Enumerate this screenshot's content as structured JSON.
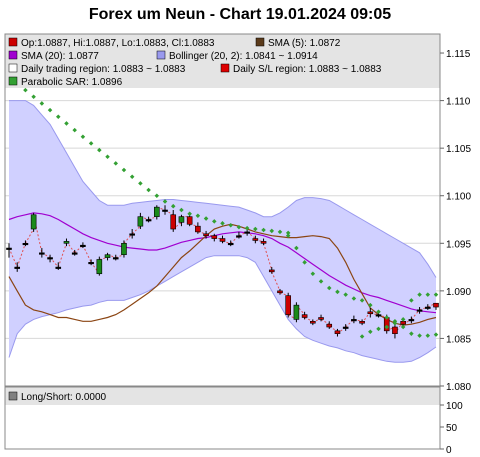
{
  "title": "Forex um Neun - Chart 19.01.2024 09:05",
  "legend": {
    "ohlc": "Op:1.0887, Hi:1.0887, Lo:1.0883, Cl:1.0883",
    "sma5": "SMA (5): 1.0872",
    "sma20": "SMA (20): 1.0877",
    "bollinger": "Bollinger (20, 2): 1.0841 ~ 1.0914",
    "daily_region": "Daily trading region: 1.0883 ~ 1.0883",
    "daily_sl": "Daily S/L region: 1.0883 ~ 1.0883",
    "sar": "Parabolic SAR: 1.0896"
  },
  "lower_legend": {
    "longshort": "Long/Short: 0.0000"
  },
  "colors": {
    "up": "#1a8a1a",
    "down": "#cc0000",
    "sma5": "#8b4513",
    "sma20": "#a000d0",
    "band_fill": "#d0d0ff",
    "band_line": "#9999ee",
    "sar": "#33a033",
    "dashes": "#e05050"
  },
  "chart_data": {
    "type": "candlestick",
    "ylim": [
      1.08,
      1.117
    ],
    "yticks": [
      "1.115",
      "1.110",
      "1.105",
      "1.100",
      "1.095",
      "1.090",
      "1.085",
      "1.080"
    ],
    "candles": [
      [
        1.0945,
        1.095,
        1.0935,
        1.0945
      ],
      [
        1.0925,
        1.093,
        1.092,
        1.0925
      ],
      [
        1.095,
        1.0953,
        1.0947,
        1.095
      ],
      [
        1.0965,
        1.0982,
        1.0962,
        1.098
      ],
      [
        1.094,
        1.0945,
        1.0935,
        1.094
      ],
      [
        1.0935,
        1.0938,
        1.093,
        1.0935
      ],
      [
        1.0925,
        1.093,
        1.0922,
        1.0925
      ],
      [
        1.095,
        1.0955,
        1.0947,
        1.0952
      ],
      [
        1.094,
        1.0943,
        1.0937,
        1.094
      ],
      [
        1.0948,
        1.0951,
        1.0945,
        1.0948
      ],
      [
        1.093,
        1.0933,
        1.0927,
        1.093
      ],
      [
        1.0918,
        1.0936,
        1.0916,
        1.0933
      ],
      [
        1.0935,
        1.094,
        1.0932,
        1.0938
      ],
      [
        1.0935,
        1.0938,
        1.0932,
        1.0935
      ],
      [
        1.0938,
        1.0953,
        1.0935,
        1.095
      ],
      [
        1.096,
        1.0965,
        1.0955,
        1.096
      ],
      [
        1.0968,
        1.0982,
        1.0965,
        1.0978
      ],
      [
        1.0975,
        1.0978,
        1.0972,
        1.0975
      ],
      [
        1.0978,
        1.099,
        1.0975,
        1.0988
      ],
      [
        1.0985,
        1.099,
        1.098,
        1.0985
      ],
      [
        1.098,
        1.0985,
        1.0962,
        1.0965
      ],
      [
        1.0972,
        1.098,
        1.0968,
        1.0978
      ],
      [
        1.0978,
        1.0982,
        1.0968,
        1.097
      ],
      [
        1.0968,
        1.0972,
        1.096,
        1.0962
      ],
      [
        1.096,
        1.0963,
        1.0955,
        1.0958
      ],
      [
        1.0958,
        1.096,
        1.0952,
        1.0955
      ],
      [
        1.0955,
        1.0958,
        1.095,
        1.0952
      ],
      [
        1.095,
        1.0953,
        1.0947,
        1.095
      ],
      [
        1.0958,
        1.0962,
        1.0955,
        1.0958
      ],
      [
        1.0962,
        1.0965,
        1.0958,
        1.0962
      ],
      [
        1.0955,
        1.0958,
        1.095,
        1.0953
      ],
      [
        1.0952,
        1.0955,
        1.0948,
        1.095
      ],
      [
        1.0922,
        1.0925,
        1.0918,
        1.092
      ],
      [
        1.09,
        1.0902,
        1.0896,
        1.0898
      ],
      [
        1.0895,
        1.0898,
        1.0872,
        1.0875
      ],
      [
        1.087,
        1.0888,
        1.0867,
        1.0885
      ],
      [
        1.0875,
        1.0878,
        1.087,
        1.0872
      ],
      [
        1.0868,
        1.087,
        1.0864,
        1.0866
      ],
      [
        1.0872,
        1.0875,
        1.0868,
        1.087
      ],
      [
        1.0865,
        1.0868,
        1.086,
        1.0862
      ],
      [
        1.0858,
        1.086,
        1.0852,
        1.0855
      ],
      [
        1.0862,
        1.0865,
        1.0858,
        1.0862
      ],
      [
        1.087,
        1.0874,
        1.0866,
        1.087
      ],
      [
        1.0868,
        1.087,
        1.0864,
        1.0866
      ],
      [
        1.0878,
        1.0882,
        1.0872,
        1.0876
      ],
      [
        1.0875,
        1.0878,
        1.0872,
        1.0875
      ],
      [
        1.0872,
        1.0875,
        1.0855,
        1.0858
      ],
      [
        1.0862,
        1.0865,
        1.085,
        1.0855
      ],
      [
        1.0868,
        1.0872,
        1.0862,
        1.0865
      ],
      [
        1.087,
        1.0873,
        1.0866,
        1.087
      ],
      [
        1.088,
        1.0883,
        1.0876,
        1.088
      ],
      [
        1.0883,
        1.0886,
        1.088,
        1.0883
      ],
      [
        1.0887,
        1.0887,
        1.088,
        1.0883
      ]
    ],
    "sma5": [
      1.0915,
      1.09,
      1.0885,
      1.088,
      1.0878,
      1.0875,
      1.0872,
      1.0872,
      1.087,
      1.0868,
      1.0868,
      1.087,
      1.0872,
      1.0875,
      1.088,
      1.0886,
      1.0892,
      1.0898,
      1.0905,
      1.0915,
      1.0925,
      1.0935,
      1.0942,
      1.095,
      1.0958,
      1.0965,
      1.0968,
      1.097,
      1.0968,
      1.0965,
      1.0962,
      1.096,
      1.0958,
      1.0957,
      1.0956,
      1.0956,
      1.0957,
      1.0958,
      1.0957,
      1.0955,
      1.0945,
      1.093,
      1.0912,
      1.0897,
      1.0882,
      1.0875,
      1.087,
      1.0866,
      1.0864,
      1.0865,
      1.0867,
      1.087,
      1.0872
    ],
    "sma20": [
      1.0975,
      1.0978,
      1.098,
      1.0982,
      1.0981,
      1.0979,
      1.0975,
      1.097,
      1.0965,
      1.096,
      1.0956,
      1.0953,
      1.095,
      1.0948,
      1.0946,
      1.0945,
      1.0944,
      1.0943,
      1.0943,
      1.0945,
      1.0948,
      1.0951,
      1.0953,
      1.0955,
      1.0956,
      1.0958,
      1.096,
      1.0961,
      1.0962,
      1.0961,
      1.096,
      1.0958,
      1.0955,
      1.095,
      1.0946,
      1.094,
      1.0934,
      1.0928,
      1.0922,
      1.0916,
      1.0911,
      1.0906,
      1.0902,
      1.0898,
      1.0895,
      1.0893,
      1.089,
      1.0887,
      1.0884,
      1.0881,
      1.0879,
      1.0878,
      1.0877
    ],
    "boll_upper": [
      1.11,
      1.11,
      1.11,
      1.1095,
      1.1085,
      1.1075,
      1.106,
      1.1045,
      1.103,
      1.1015,
      1.1005,
      1.0995,
      1.099,
      1.099,
      1.099,
      1.0992,
      1.0993,
      1.0994,
      1.0995,
      1.0996,
      1.0996,
      1.0995,
      1.0994,
      1.0993,
      1.0992,
      1.0991,
      1.099,
      1.0989,
      1.0988,
      1.0985,
      1.0982,
      1.0978,
      1.0978,
      1.0982,
      1.0988,
      1.0995,
      1.0998,
      1.0998,
      1.0997,
      1.0995,
      1.099,
      1.0985,
      1.098,
      1.0975,
      1.097,
      1.0965,
      1.096,
      1.0955,
      1.095,
      1.0945,
      1.094,
      1.0928,
      1.0914
    ],
    "boll_lower": [
      1.083,
      1.0855,
      1.0865,
      1.087,
      1.0873,
      1.0875,
      1.0877,
      1.088,
      1.0882,
      1.0884,
      1.0885,
      1.0888,
      1.089,
      1.089,
      1.089,
      1.0893,
      1.0896,
      1.09,
      1.0905,
      1.091,
      1.0915,
      1.092,
      1.0925,
      1.093,
      1.0935,
      1.0937,
      1.0937,
      1.0937,
      1.0937,
      1.0935,
      1.093,
      1.0915,
      1.09,
      1.0885,
      1.087,
      1.086,
      1.0852,
      1.0848,
      1.0845,
      1.0842,
      1.084,
      1.0837,
      1.0835,
      1.0832,
      1.083,
      1.0828,
      1.0826,
      1.0825,
      1.0825,
      1.0826,
      1.083,
      1.0835,
      1.0841
    ],
    "sar": [
      1.1125,
      1.1118,
      1.1111,
      1.1104,
      1.1097,
      1.109,
      1.1083,
      1.1076,
      1.1069,
      1.1062,
      1.1055,
      1.1048,
      1.1041,
      1.1034,
      1.1027,
      1.102,
      1.1013,
      1.1006,
      1.1,
      1.0994,
      1.0989,
      1.0985,
      1.0981,
      1.0979,
      1.0976,
      1.0973,
      1.0971,
      1.0969,
      1.0967,
      1.0966,
      1.0965,
      1.0964,
      1.0963,
      1.0962,
      1.0961,
      null,
      null,
      null,
      null,
      null,
      null,
      null,
      null,
      null,
      null,
      null,
      null,
      null,
      null,
      null,
      null,
      null,
      null
    ],
    "sar2_start": 34,
    "sar2": [
      1.0958,
      1.0945,
      1.093,
      1.0918,
      1.091,
      1.0903,
      1.0899,
      1.0896,
      1.0892,
      1.089,
      1.0885,
      1.0878,
      1.0872,
      1.0868,
      1.0862,
      1.0855,
      1.0853,
      1.0853,
      1.0854
    ],
    "sar3_start": 43,
    "sar3": [
      1.0852,
      1.0857,
      1.086,
      1.0862,
      1.0866,
      1.087,
      1.089,
      1.0896,
      1.0896,
      1.0896
    ],
    "lower_panel": {
      "ylim": [
        0,
        100
      ],
      "yticks": [
        "100",
        "50",
        "0"
      ]
    }
  }
}
